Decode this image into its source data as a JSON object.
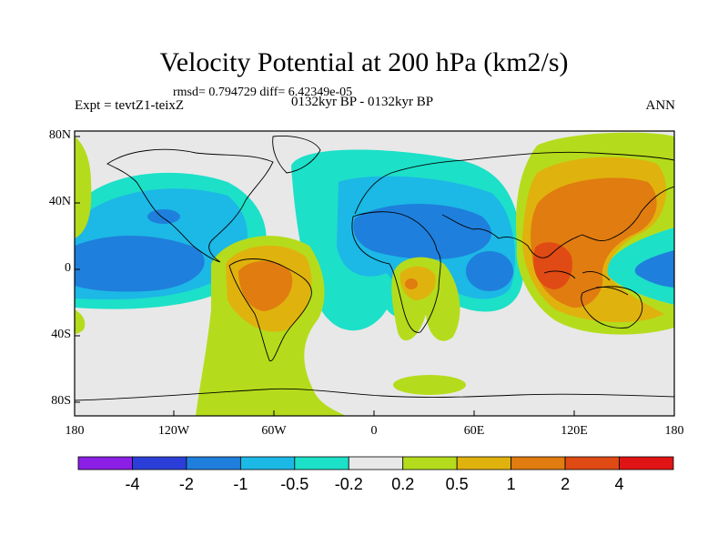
{
  "title": "Velocity Potential at 200 hPa (km2/s)",
  "stats_line": "rmsd= 0.794729 diff= 6.42349e-05",
  "expt_label": "Expt = tevtZ1-teixZ",
  "period_label": "0132kyr BP - 0132kyr BP",
  "season_label": "ANN",
  "lat_labels": [
    "80N",
    "40N",
    "0",
    "40S",
    "80S"
  ],
  "lon_labels": [
    "180",
    "120W",
    "60W",
    "0",
    "60E",
    "120E",
    "180"
  ],
  "colorbar": {
    "labels": [
      "-4",
      "-2",
      "-1",
      "-0.5",
      "-0.2",
      "0.2",
      "0.5",
      "1",
      "2",
      "4"
    ],
    "colors": [
      "#8c1fe6",
      "#2b3fd8",
      "#1f7fdc",
      "#1cb8e6",
      "#1ce0c8",
      "#e8e8e8",
      "#b4dc1c",
      "#e0b20e",
      "#e07c10",
      "#e04a14",
      "#e01414"
    ]
  },
  "field_colors": {
    "neg_light": "#1ce0c8",
    "neg_mid": "#1cb8e6",
    "neg_strong": "#1f7fdc",
    "neutral": "#e8e8e8",
    "pos_light": "#b4dc1c",
    "pos_mid": "#e0b20e",
    "pos_strong": "#e07c10",
    "pos_max": "#e04a14"
  }
}
